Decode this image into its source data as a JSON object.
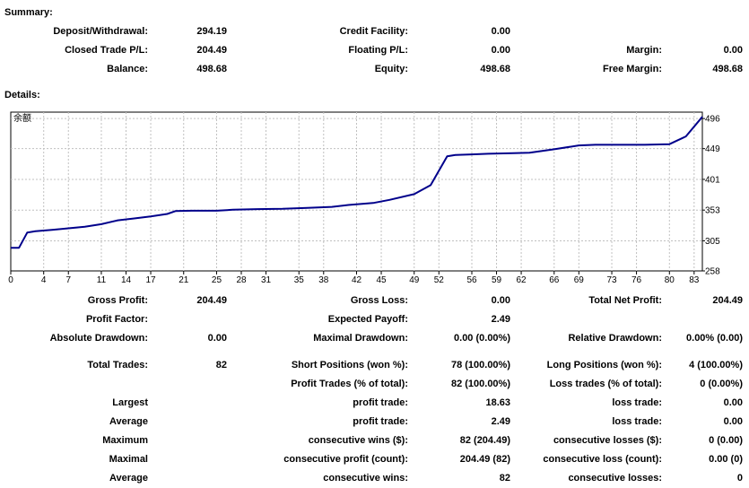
{
  "summary": {
    "title": "Summary:",
    "rows": [
      [
        {
          "label": "Deposit/Withdrawal:",
          "value": "294.19"
        },
        {
          "label": "Credit Facility:",
          "value": "0.00"
        },
        null
      ],
      [
        {
          "label": "Closed Trade P/L:",
          "value": "204.49"
        },
        {
          "label": "Floating P/L:",
          "value": "0.00"
        },
        {
          "label": "Margin:",
          "value": "0.00"
        }
      ],
      [
        {
          "label": "Balance:",
          "value": "498.68"
        },
        {
          "label": "Equity:",
          "value": "498.68"
        },
        {
          "label": "Free Margin:",
          "value": "498.68"
        }
      ]
    ]
  },
  "details": {
    "title": "Details:",
    "rows": [
      [
        {
          "label": "Gross Profit:",
          "value": "204.49"
        },
        {
          "label": "Gross Loss:",
          "value": "0.00"
        },
        {
          "label": "Total Net Profit:",
          "value": "204.49"
        }
      ],
      [
        {
          "label": "Profit Factor:",
          "value": ""
        },
        {
          "label": "Expected Payoff:",
          "value": "2.49"
        },
        null
      ],
      [
        {
          "label": "Absolute Drawdown:",
          "value": "0.00"
        },
        {
          "label": "Maximal Drawdown:",
          "value": "0.00 (0.00%)"
        },
        {
          "label": "Relative Drawdown:",
          "value": "0.00% (0.00)"
        }
      ],
      [
        {
          "label": "Total Trades:",
          "value": "82"
        },
        {
          "label": "Short Positions (won %):",
          "value": "78 (100.00%)"
        },
        {
          "label": "Long Positions (won %):",
          "value": "4 (100.00%)"
        }
      ],
      [
        null,
        {
          "label": "Profit Trades (% of total):",
          "value": "82 (100.00%)"
        },
        {
          "label": "Loss trades (% of total):",
          "value": "0 (0.00%)"
        }
      ],
      [
        {
          "label": "Largest",
          "value": ""
        },
        {
          "label": "profit trade:",
          "value": "18.63"
        },
        {
          "label": "loss trade:",
          "value": "0.00"
        }
      ],
      [
        {
          "label": "Average",
          "value": ""
        },
        {
          "label": "profit trade:",
          "value": "2.49"
        },
        {
          "label": "loss trade:",
          "value": "0.00"
        }
      ],
      [
        {
          "label": "Maximum",
          "value": ""
        },
        {
          "label": "consecutive wins ($):",
          "value": "82 (204.49)"
        },
        {
          "label": "consecutive losses ($):",
          "value": "0 (0.00)"
        }
      ],
      [
        {
          "label": "Maximal",
          "value": ""
        },
        {
          "label": "consecutive profit (count):",
          "value": "204.49 (82)"
        },
        {
          "label": "consecutive loss (count):",
          "value": "0.00 (0)"
        }
      ],
      [
        {
          "label": "Average",
          "value": ""
        },
        {
          "label": "consecutive wins:",
          "value": "82"
        },
        {
          "label": "consecutive losses:",
          "value": "0"
        }
      ]
    ]
  },
  "chart_data": {
    "type": "line",
    "title": "余额",
    "xlabel": "",
    "ylabel": "",
    "x_ticks": [
      0,
      4,
      7,
      11,
      14,
      17,
      21,
      25,
      28,
      31,
      35,
      38,
      42,
      45,
      49,
      52,
      56,
      59,
      62,
      66,
      69,
      73,
      76,
      80,
      83
    ],
    "y_ticks": [
      258,
      305,
      353,
      401,
      449,
      496
    ],
    "xlim": [
      0,
      84
    ],
    "ylim": [
      258,
      506
    ],
    "grid": true,
    "line_color": "#00008b",
    "series": [
      {
        "name": "",
        "x": [
          0,
          1,
          2,
          3,
          5,
          7,
          9,
          11,
          13,
          15,
          17,
          19,
          20,
          22,
          25,
          27,
          30,
          33,
          36,
          39,
          41,
          44,
          46,
          49,
          51,
          53,
          54,
          56,
          58,
          61,
          63,
          66,
          69,
          71,
          74,
          77,
          80,
          82,
          84
        ],
        "y": [
          294.2,
          294.2,
          318.0,
          320.0,
          322.0,
          324.5,
          327.0,
          331.0,
          337.0,
          340.0,
          343.0,
          347.0,
          351.5,
          352.0,
          352.0,
          353.5,
          354.5,
          355.0,
          356.5,
          358.0,
          361.0,
          364.0,
          369.0,
          378.0,
          392.0,
          437.0,
          439.0,
          440.0,
          441.0,
          442.0,
          442.5,
          448.0,
          454.0,
          455.0,
          455.0,
          455.0,
          456.0,
          468.0,
          498.7
        ]
      }
    ]
  }
}
